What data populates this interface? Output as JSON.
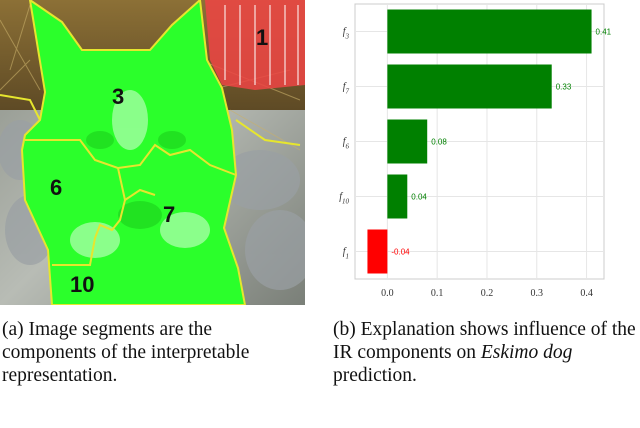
{
  "figure_a": {
    "segment_labels": [
      "1",
      "3",
      "6",
      "7",
      "10"
    ],
    "caption": "(a) Image segments are the components of the interpretable representation."
  },
  "figure_b": {
    "caption_prefix": "(b) Explanation shows influence of the IR components on ",
    "caption_emph": "Eskimo dog",
    "caption_suffix": " prediction."
  },
  "chart_data": {
    "type": "bar",
    "orientation": "horizontal",
    "categories": [
      "f3",
      "f7",
      "f6",
      "f10",
      "f1"
    ],
    "category_labels": [
      {
        "base": "f",
        "sub": "3"
      },
      {
        "base": "f",
        "sub": "7"
      },
      {
        "base": "f",
        "sub": "6"
      },
      {
        "base": "f",
        "sub": "10"
      },
      {
        "base": "f",
        "sub": "1"
      }
    ],
    "values": [
      0.41,
      0.33,
      0.08,
      0.04,
      -0.04
    ],
    "value_labels": [
      "0.41",
      "0.33",
      "0.08",
      "0.04",
      "-0.04"
    ],
    "colors": [
      "#008000",
      "#008000",
      "#008000",
      "#008000",
      "#ff0000"
    ],
    "xlim": [
      -0.065,
      0.435
    ],
    "xticks": [
      0.0,
      0.1,
      0.2,
      0.3,
      0.4
    ],
    "xtick_labels": [
      "0.0",
      "0.1",
      "0.2",
      "0.3",
      "0.4"
    ],
    "grid": true,
    "title": "",
    "xlabel": "",
    "ylabel": ""
  },
  "colors": {
    "segment_fill": "#2bff2b",
    "segment_border": "#e6e62e",
    "background_segment_fill": "#ee4444",
    "positive_bar": "#008000",
    "negative_bar": "#ff0000",
    "grid": "#e6e6e6"
  }
}
